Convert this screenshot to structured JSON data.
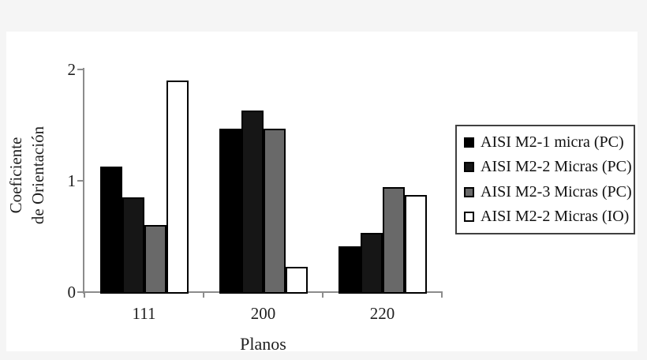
{
  "figure": {
    "background": "#f5f5f5",
    "panel_background": "#ffffff",
    "axis_color": "#8c8c8c",
    "text_color": "#1f1f1f",
    "legend_border_color": "#404040"
  },
  "chart_data": {
    "type": "bar",
    "title": "",
    "xlabel": "Planos",
    "ylabel": "Coeficiente de Orientación",
    "ylabel_lines": [
      "Coeficiente",
      "de Orientación"
    ],
    "ylim": [
      0,
      2
    ],
    "yticks": [
      0,
      1,
      2
    ],
    "yticklabels": [
      "0",
      "1",
      "2"
    ],
    "grid": false,
    "legend_position": "right",
    "categories": [
      "111",
      "200",
      "220"
    ],
    "series": [
      {
        "name": "AISI M2-1 micra (PC)",
        "fill": "#000000",
        "border": "#000000",
        "values": [
          1.13,
          1.47,
          0.41
        ]
      },
      {
        "name": "AISI M2-2 Micras (PC)",
        "fill": "#161616",
        "border": "#000000",
        "values": [
          0.85,
          1.63,
          0.53
        ]
      },
      {
        "name": "AISI M2-3 Micras (PC)",
        "fill": "#696969",
        "border": "#000000",
        "values": [
          0.6,
          1.47,
          0.94
        ]
      },
      {
        "name": "AISI M2-2 Micras (IO)",
        "fill": "#ffffff",
        "border": "#000000",
        "values": [
          1.9,
          0.23,
          0.87
        ]
      }
    ]
  }
}
